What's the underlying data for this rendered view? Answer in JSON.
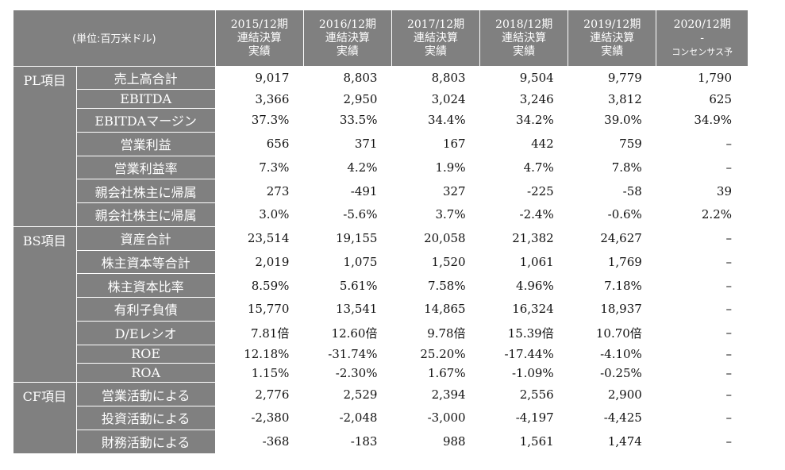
{
  "header": {
    "unit": "(単位:百万米ドル)",
    "years": [
      {
        "line1": "2015/12期",
        "line2": "連結決算",
        "line3": "実績"
      },
      {
        "line1": "2016/12期",
        "line2": "連結決算",
        "line3": "実績"
      },
      {
        "line1": "2017/12期",
        "line2": "連結決算",
        "line3": "実績"
      },
      {
        "line1": "2018/12期",
        "line2": "連結決算",
        "line3": "実績"
      },
      {
        "line1": "2019/12期",
        "line2": "連結決算",
        "line3": "実績"
      },
      {
        "line1": "2020/12期",
        "line2": "-",
        "line3": "コンセンサス予"
      }
    ]
  },
  "sections": [
    {
      "category": "PL項目",
      "rows": [
        {
          "label": "売上高合計",
          "values": [
            "9,017",
            "8,803",
            "8,803",
            "9,504",
            "9,779",
            "1,790"
          ]
        },
        {
          "label": "EBITDA",
          "values": [
            "3,366",
            "2,950",
            "3,024",
            "3,246",
            "3,812",
            "625"
          ]
        },
        {
          "label": "EBITDAマージン",
          "values": [
            "37.3%",
            "33.5%",
            "34.4%",
            "34.2%",
            "39.0%",
            "34.9%"
          ]
        },
        {
          "label": "営業利益",
          "values": [
            "656",
            "371",
            "167",
            "442",
            "759",
            "–"
          ]
        },
        {
          "label": "営業利益率",
          "values": [
            "7.3%",
            "4.2%",
            "1.9%",
            "4.7%",
            "7.8%",
            "–"
          ]
        },
        {
          "label": "親会社株主に帰属",
          "values": [
            "273",
            "-491",
            "327",
            "-225",
            "-58",
            "39"
          ]
        },
        {
          "label": "親会社株主に帰属",
          "values": [
            "3.0%",
            "-5.6%",
            "3.7%",
            "-2.4%",
            "-0.6%",
            "2.2%"
          ]
        }
      ]
    },
    {
      "category": "BS項目",
      "rows": [
        {
          "label": "資産合計",
          "values": [
            "23,514",
            "19,155",
            "20,058",
            "21,382",
            "24,627",
            "–"
          ]
        },
        {
          "label": "株主資本等合計",
          "values": [
            "2,019",
            "1,075",
            "1,520",
            "1,061",
            "1,769",
            "–"
          ]
        },
        {
          "label": "株主資本比率",
          "values": [
            "8.59%",
            "5.61%",
            "7.58%",
            "4.96%",
            "7.18%",
            "–"
          ]
        },
        {
          "label": "有利子負債",
          "values": [
            "15,770",
            "13,541",
            "14,865",
            "16,324",
            "18,937",
            "–"
          ]
        },
        {
          "label": "D/Eレシオ",
          "values": [
            "7.81倍",
            "12.60倍",
            "9.78倍",
            "15.39倍",
            "10.70倍",
            "–"
          ]
        },
        {
          "label": "ROE",
          "values": [
            "12.18%",
            "-31.74%",
            "25.20%",
            "-17.44%",
            "-4.10%",
            "–"
          ]
        },
        {
          "label": "ROA",
          "values": [
            "1.15%",
            "-2.30%",
            "1.67%",
            "-1.09%",
            "-0.25%",
            "–"
          ]
        }
      ]
    },
    {
      "category": "CF項目",
      "rows": [
        {
          "label": "営業活動による",
          "values": [
            "2,776",
            "2,529",
            "2,394",
            "2,556",
            "2,900",
            "–"
          ]
        },
        {
          "label": "投資活動による",
          "values": [
            "-2,380",
            "-2,048",
            "-3,000",
            "-4,197",
            "-4,425",
            "–"
          ]
        },
        {
          "label": "財務活動による",
          "values": [
            "-368",
            "-183",
            "988",
            "1,561",
            "1,474",
            "–"
          ]
        }
      ]
    }
  ]
}
